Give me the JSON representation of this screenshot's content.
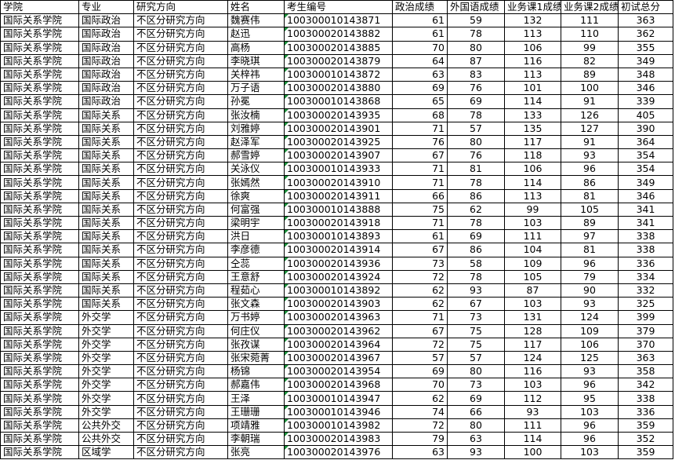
{
  "table": {
    "header": [
      "学院",
      "专业",
      "研究方向",
      "姓名",
      "考生编号",
      "政治成绩",
      "外国语成绩",
      "业务课1成绩",
      "业务课2成绩",
      "初试总分"
    ],
    "rows": [
      [
        "国际关系学院",
        "国际政治",
        "不区分研究方向",
        "魏赛伟",
        "100300010143871",
        61,
        59,
        132,
        111,
        363
      ],
      [
        "国际关系学院",
        "国际政治",
        "不区分研究方向",
        "赵迅",
        "100300020143882",
        61,
        78,
        113,
        110,
        362
      ],
      [
        "国际关系学院",
        "国际政治",
        "不区分研究方向",
        "高杨",
        "100300020143885",
        70,
        80,
        106,
        99,
        355
      ],
      [
        "国际关系学院",
        "国际政治",
        "不区分研究方向",
        "李晓琪",
        "100300020143879",
        64,
        87,
        116,
        82,
        349
      ],
      [
        "国际关系学院",
        "国际政治",
        "不区分研究方向",
        "关梓祎",
        "100300010143872",
        63,
        83,
        113,
        89,
        348
      ],
      [
        "国际关系学院",
        "国际政治",
        "不区分研究方向",
        "万子语",
        "100300020143880",
        69,
        76,
        101,
        100,
        346
      ],
      [
        "国际关系学院",
        "国际政治",
        "不区分研究方向",
        "孙冕",
        "100300010143868",
        65,
        69,
        114,
        91,
        339
      ],
      [
        "国际关系学院",
        "国际关系",
        "不区分研究方向",
        "张汝楠",
        "100300020143935",
        68,
        78,
        133,
        126,
        405
      ],
      [
        "国际关系学院",
        "国际关系",
        "不区分研究方向",
        "刘雅婷",
        "100300020143901",
        71,
        57,
        135,
        127,
        390
      ],
      [
        "国际关系学院",
        "国际关系",
        "不区分研究方向",
        "赵泽军",
        "100300020143925",
        76,
        80,
        117,
        91,
        364
      ],
      [
        "国际关系学院",
        "国际关系",
        "不区分研究方向",
        "郝雪婷",
        "100300020143907",
        67,
        76,
        118,
        93,
        354
      ],
      [
        "国际关系学院",
        "国际关系",
        "不区分研究方向",
        "关泳仪",
        "100300010143933",
        71,
        81,
        106,
        96,
        354
      ],
      [
        "国际关系学院",
        "国际关系",
        "不区分研究方向",
        "张嫣然",
        "100300020143910",
        71,
        78,
        114,
        86,
        349
      ],
      [
        "国际关系学院",
        "国际关系",
        "不区分研究方向",
        "徐爽",
        "100300020143911",
        66,
        86,
        113,
        81,
        346
      ],
      [
        "国际关系学院",
        "国际关系",
        "不区分研究方向",
        "何富强",
        "100300010143888",
        75,
        62,
        99,
        105,
        341
      ],
      [
        "国际关系学院",
        "国际关系",
        "不区分研究方向",
        "梁明宇",
        "100300020143918",
        71,
        78,
        103,
        89,
        341
      ],
      [
        "国际关系学院",
        "国际关系",
        "不区分研究方向",
        "洪日",
        "100300010143893",
        61,
        69,
        111,
        97,
        338
      ],
      [
        "国际关系学院",
        "国际关系",
        "不区分研究方向",
        "李彦德",
        "100300020143914",
        67,
        86,
        104,
        81,
        338
      ],
      [
        "国际关系学院",
        "国际关系",
        "不区分研究方向",
        "仝蕊",
        "100300020143936",
        73,
        58,
        109,
        96,
        336
      ],
      [
        "国际关系学院",
        "国际关系",
        "不区分研究方向",
        "王意舒",
        "100300020143924",
        72,
        78,
        105,
        79,
        334
      ],
      [
        "国际关系学院",
        "国际关系",
        "不区分研究方向",
        "程茹心",
        "100300010143892",
        62,
        93,
        87,
        90,
        332
      ],
      [
        "国际关系学院",
        "国际关系",
        "不区分研究方向",
        "张文森",
        "100300020143903",
        62,
        67,
        103,
        93,
        325
      ],
      [
        "国际关系学院",
        "外交学",
        "不区分研究方向",
        "万书婷",
        "100300020143963",
        71,
        73,
        131,
        124,
        399
      ],
      [
        "国际关系学院",
        "外交学",
        "不区分研究方向",
        "何庄仪",
        "100300020143962",
        67,
        75,
        128,
        109,
        379
      ],
      [
        "国际关系学院",
        "外交学",
        "不区分研究方向",
        "张孜谋",
        "100300020143964",
        72,
        75,
        117,
        106,
        370
      ],
      [
        "国际关系学院",
        "外交学",
        "不区分研究方向",
        "张宋菀菁",
        "100300020143967",
        57,
        57,
        124,
        125,
        363
      ],
      [
        "国际关系学院",
        "外交学",
        "不区分研究方向",
        "杨锦",
        "100300020143954",
        69,
        80,
        116,
        93,
        358
      ],
      [
        "国际关系学院",
        "外交学",
        "不区分研究方向",
        "郝嘉伟",
        "100300020143968",
        70,
        73,
        103,
        96,
        342
      ],
      [
        "国际关系学院",
        "外交学",
        "不区分研究方向",
        "王泽",
        "100300010143947",
        62,
        69,
        112,
        95,
        338
      ],
      [
        "国际关系学院",
        "外交学",
        "不区分研究方向",
        "王珊珊",
        "100300010143946",
        74,
        66,
        93,
        103,
        336
      ],
      [
        "国际关系学院",
        "公共外交",
        "不区分研究方向",
        "项靖雅",
        "100300010143982",
        72,
        80,
        111,
        96,
        359
      ],
      [
        "国际关系学院",
        "公共外交",
        "不区分研究方向",
        "李朝瑞",
        "100300020143983",
        79,
        63,
        114,
        96,
        352
      ],
      [
        "国际关系学院",
        "区域学",
        "不区分研究方向",
        "张亮",
        "100300020143976",
        63,
        93,
        100,
        103,
        359
      ]
    ]
  }
}
